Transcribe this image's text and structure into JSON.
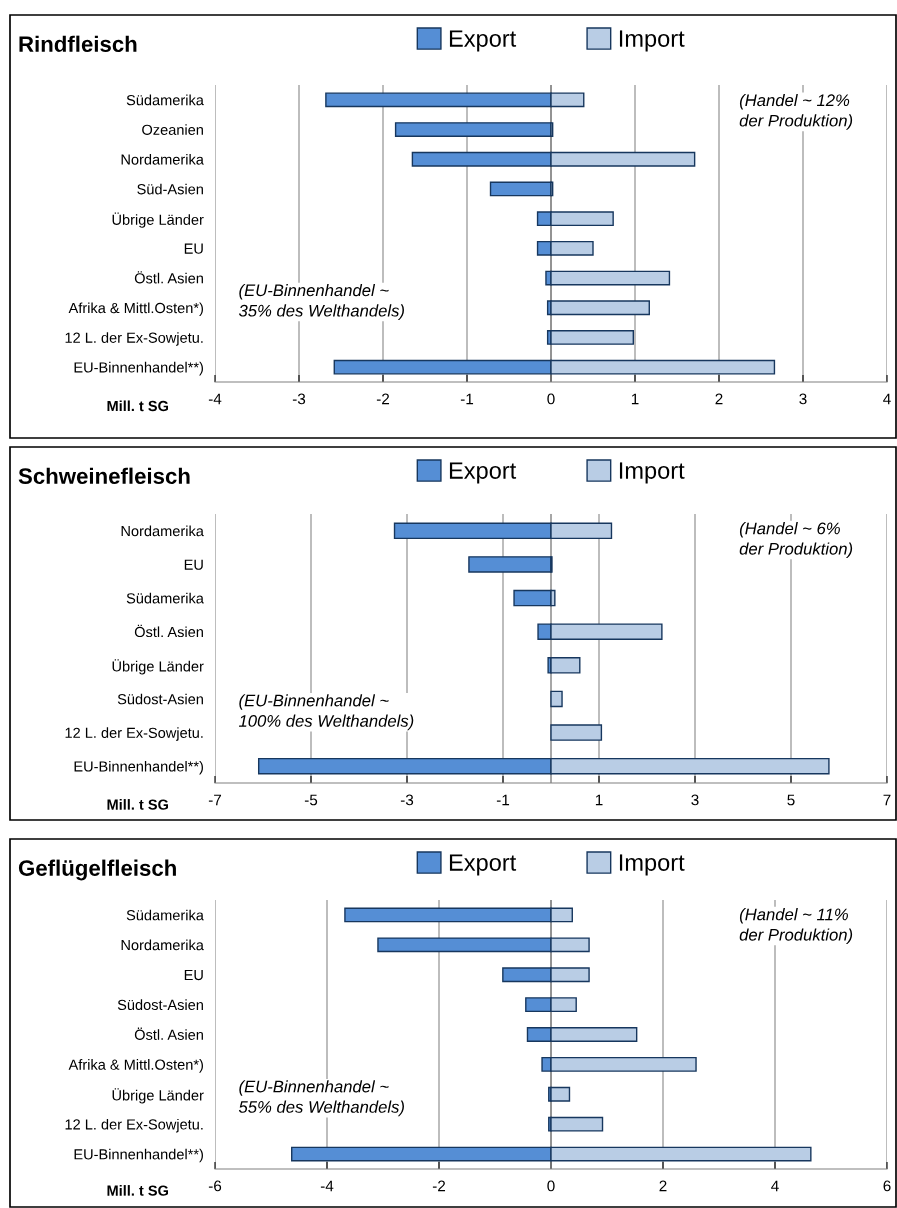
{
  "chart_data": [
    {
      "type": "bar",
      "orientation": "horizontal",
      "title": "Rindfleisch",
      "stacked": true,
      "xlabel": "Mill. t SG",
      "legend": "top",
      "grid": "x",
      "categories": [
        "Südamerika",
        "Ozeanien",
        "Nordamerika",
        "Süd-Asien",
        "Übrige Länder",
        "EU",
        "Östl. Asien",
        "Afrika & Mittl.Osten*)",
        "12 L. der Ex-Sowjetu.",
        "EU-Binnenhandel**)"
      ],
      "series": [
        {
          "name": "Export",
          "color": "#558ed5",
          "values": [
            -2.68,
            -1.85,
            -1.65,
            -0.72,
            -0.16,
            -0.16,
            -0.06,
            -0.04,
            -0.04,
            -2.58
          ]
        },
        {
          "name": "Import",
          "color": "#b9cde5",
          "values": [
            0.39,
            0.02,
            1.71,
            0.02,
            0.74,
            0.5,
            1.41,
            1.17,
            0.98,
            2.66
          ]
        }
      ],
      "xlim": [
        -4,
        4
      ],
      "xticks": [
        -4,
        -3,
        -2,
        -1,
        0,
        1,
        2,
        3,
        4
      ],
      "annotations": [
        "(Handel ~ 12%\nder Produktion)",
        "(EU-Binnenhandel ~\n35% des Welthandels)"
      ]
    },
    {
      "type": "bar",
      "orientation": "horizontal",
      "title": "Schweinefleisch",
      "stacked": true,
      "xlabel": "Mill. t SG",
      "legend": "top",
      "grid": "x",
      "categories": [
        "Nordamerika",
        "EU",
        "Südamerika",
        "Östl. Asien",
        "Übrige Länder",
        "Südost-Asien",
        "12 L. der Ex-Sowjetu.",
        "EU-Binnenhandel**)"
      ],
      "series": [
        {
          "name": "Export",
          "color": "#558ed5",
          "values": [
            -3.26,
            -1.71,
            -0.77,
            -0.27,
            -0.06,
            null,
            null,
            -6.09
          ]
        },
        {
          "name": "Import",
          "color": "#b9cde5",
          "values": [
            1.26,
            0.02,
            0.08,
            2.31,
            0.6,
            0.23,
            1.05,
            5.79
          ]
        }
      ],
      "xlim": [
        -7,
        7
      ],
      "xticks": [
        -7,
        -5,
        -3,
        -1,
        1,
        3,
        5,
        7
      ],
      "annotations": [
        "(Handel ~ 6%\nder Produktion)",
        "(EU-Binnenhandel ~\n100% des Welthandels)"
      ]
    },
    {
      "type": "bar",
      "orientation": "horizontal",
      "title": "Geflügelfleisch",
      "stacked": true,
      "xlabel": "Mill. t SG",
      "legend": "top",
      "grid": "x",
      "categories": [
        "Südamerika",
        "Nordamerika",
        "EU",
        "Südost-Asien",
        "Östl. Asien",
        "Afrika & Mittl.Osten*)",
        "Übrige Länder",
        "12 L. der Ex-Sowjetu.",
        "EU-Binnenhandel**)"
      ],
      "series": [
        {
          "name": "Export",
          "color": "#558ed5",
          "values": [
            -3.68,
            -3.09,
            -0.86,
            -0.45,
            -0.42,
            -0.16,
            -0.04,
            -0.04,
            -4.63
          ]
        },
        {
          "name": "Import",
          "color": "#b9cde5",
          "values": [
            0.38,
            0.68,
            0.68,
            0.45,
            1.53,
            2.59,
            0.33,
            0.92,
            4.64
          ]
        }
      ],
      "xlim": [
        -6,
        6
      ],
      "xticks": [
        -6,
        -4,
        -2,
        0,
        2,
        4,
        6
      ],
      "annotations": [
        "(Handel ~ 11%\nder Produktion)",
        "(EU-Binnenhandel ~\n55% des Welthandels)"
      ]
    }
  ]
}
